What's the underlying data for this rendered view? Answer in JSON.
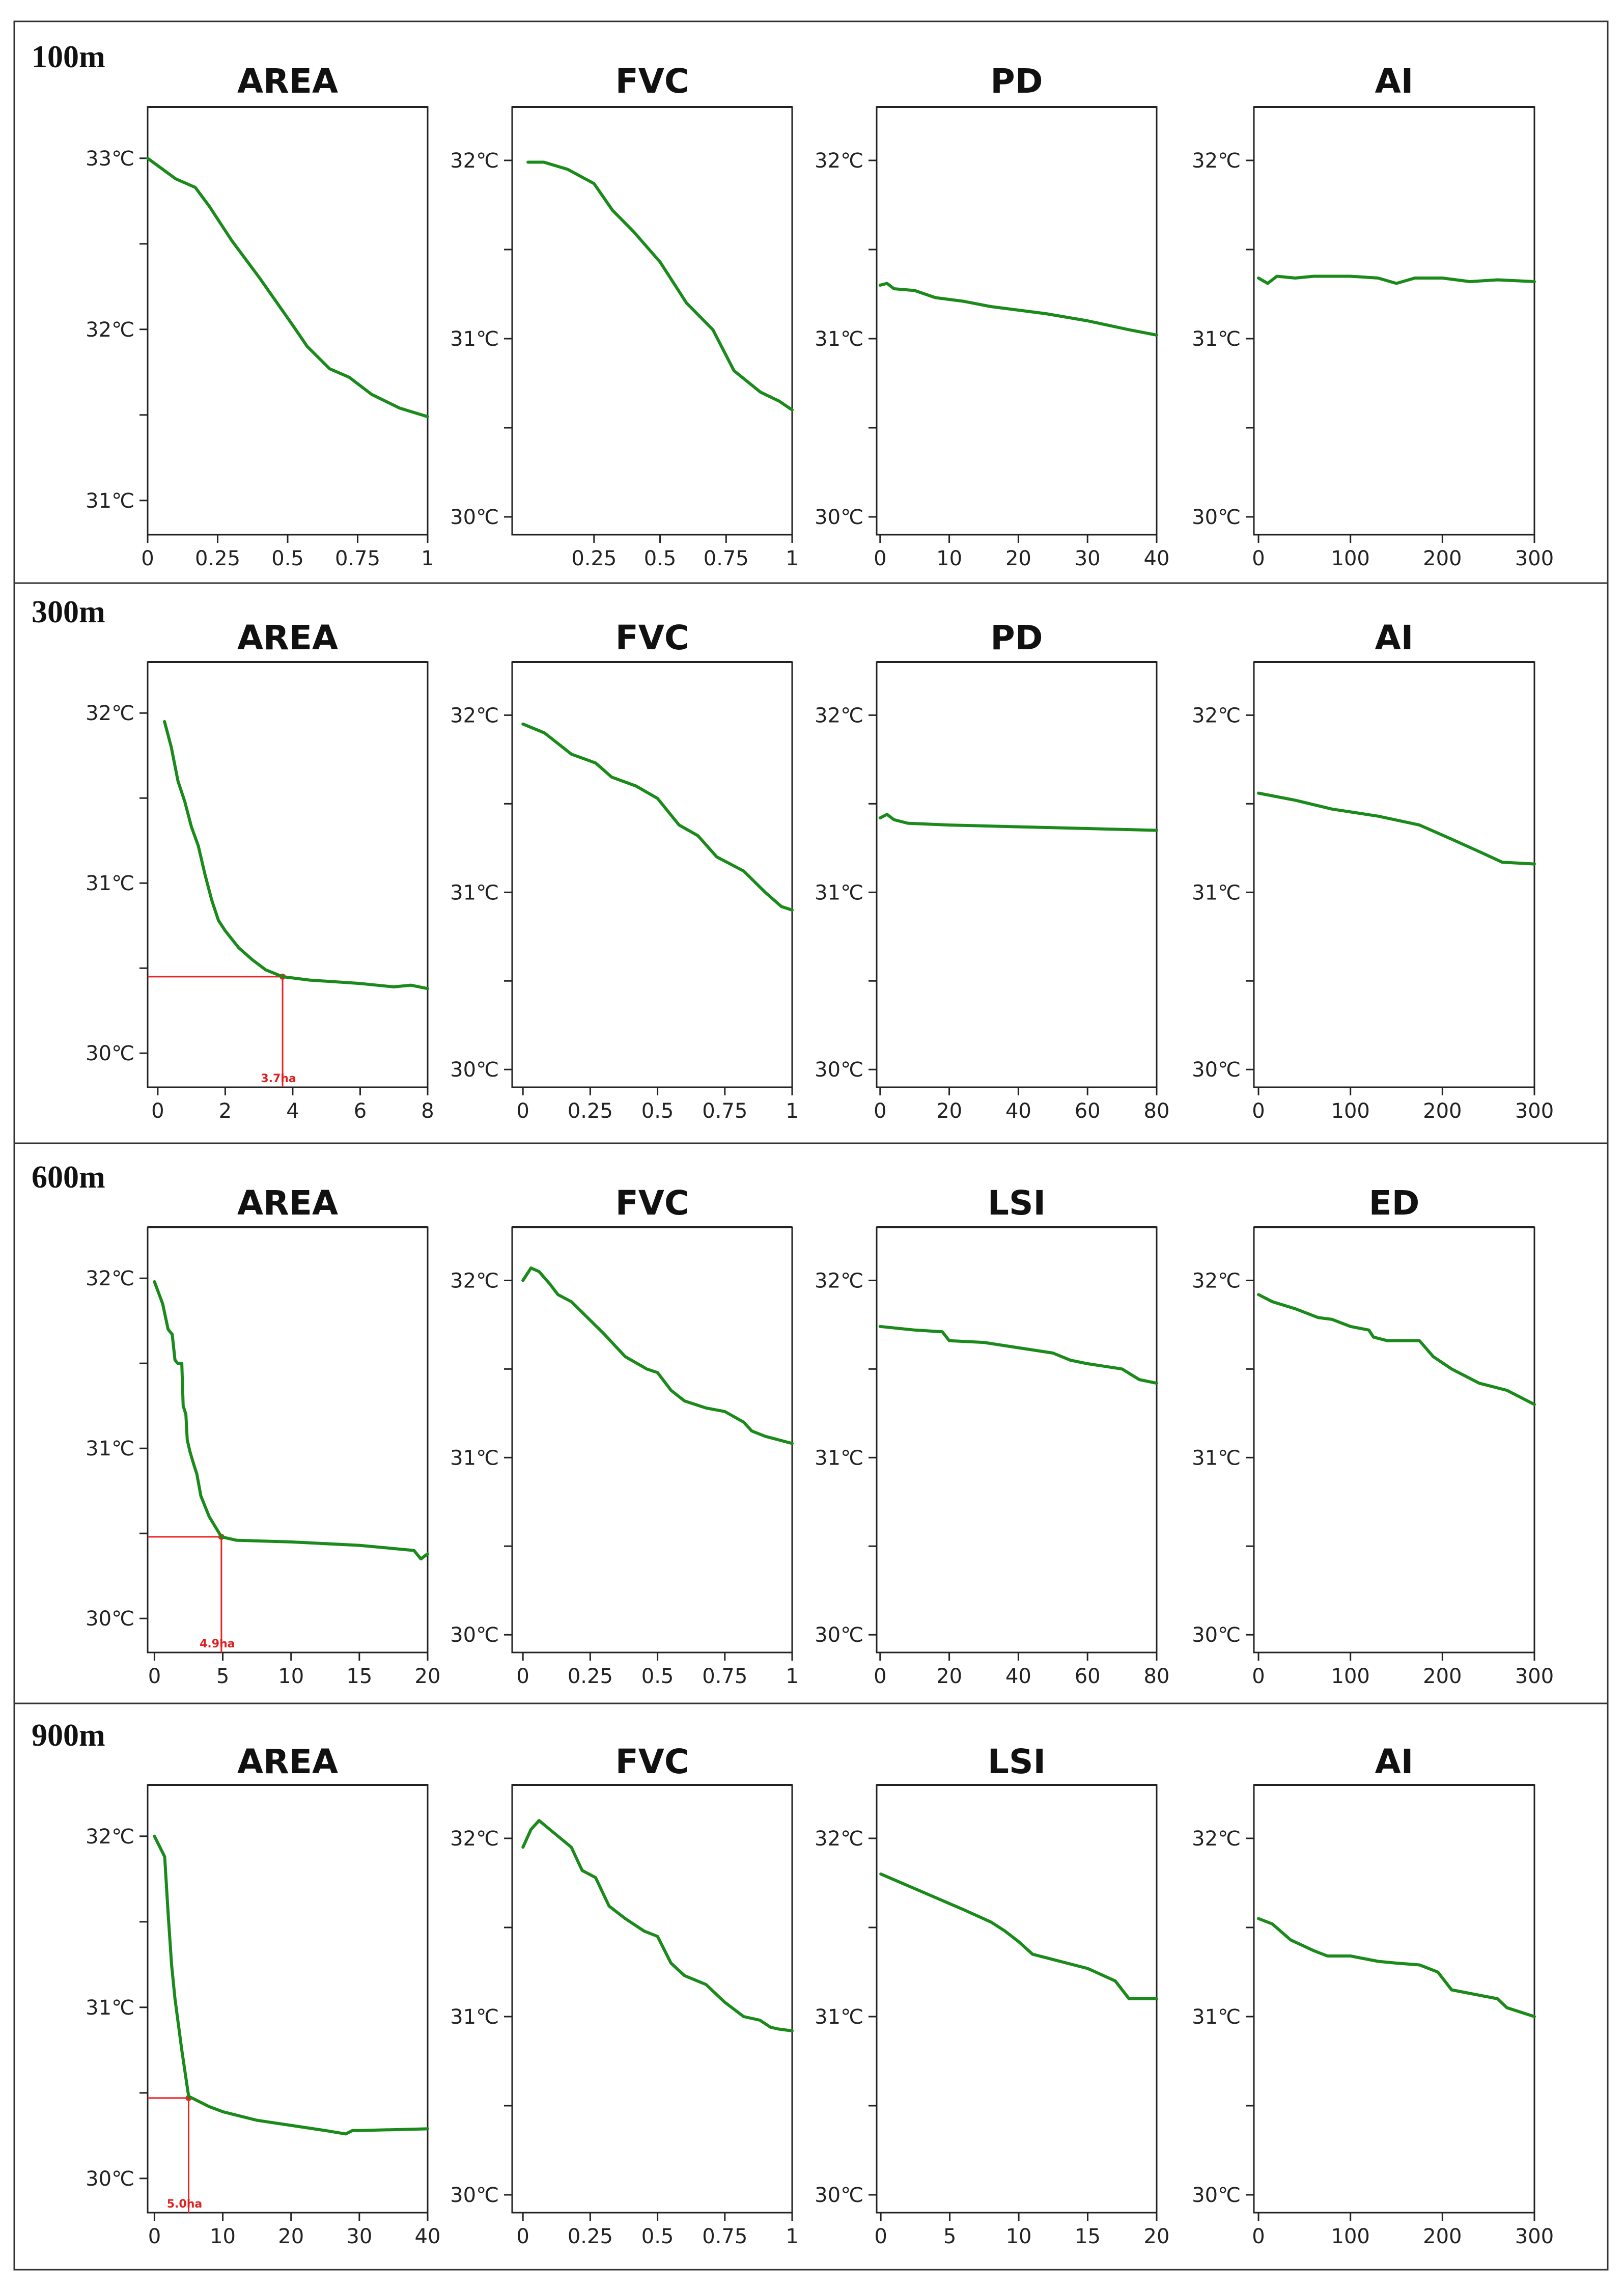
{
  "colors": {
    "series": "#1a8a1a",
    "annotation": "#ee2222",
    "axis": "#222222"
  },
  "chart_data": [
    {
      "row": "100m",
      "title": "AREA",
      "type": "line",
      "xlim": [
        0,
        1
      ],
      "ylim": [
        30.8,
        33.3
      ],
      "xticks": [
        {
          "v": 0,
          "label": "0"
        },
        {
          "v": 0.25,
          "label": "0.25"
        },
        {
          "v": 0.5,
          "label": "0.5"
        },
        {
          "v": 0.75,
          "label": "0.75"
        },
        {
          "v": 1,
          "label": "1"
        }
      ],
      "yticks": [
        {
          "v": 31,
          "label": "31℃"
        },
        {
          "v": 32,
          "label": "32℃"
        },
        {
          "v": 33,
          "label": "33℃"
        }
      ],
      "yminor": [
        31.5,
        32.5
      ],
      "x": [
        0,
        0.1,
        0.17,
        0.22,
        0.3,
        0.4,
        0.52,
        0.57,
        0.65,
        0.72,
        0.8,
        0.9,
        1.0
      ],
      "y": [
        33.0,
        32.88,
        32.83,
        32.72,
        32.52,
        32.3,
        32.02,
        31.9,
        31.77,
        31.72,
        31.62,
        31.54,
        31.49
      ]
    },
    {
      "row": "100m",
      "title": "FVC",
      "type": "line",
      "xlim": [
        -0.06,
        1
      ],
      "ylim": [
        29.9,
        32.3
      ],
      "xticks": [
        {
          "v": 0.25,
          "label": "0.25"
        },
        {
          "v": 0.5,
          "label": "0.5"
        },
        {
          "v": 0.75,
          "label": "0.75"
        },
        {
          "v": 1,
          "label": "1"
        }
      ],
      "yticks": [
        {
          "v": 30,
          "label": "30℃"
        },
        {
          "v": 31,
          "label": "31℃"
        },
        {
          "v": 32,
          "label": "32℃"
        }
      ],
      "yminor": [
        30.5,
        31.5
      ],
      "x": [
        0,
        0.06,
        0.15,
        0.25,
        0.32,
        0.4,
        0.5,
        0.6,
        0.7,
        0.78,
        0.88,
        0.95,
        1.0
      ],
      "y": [
        31.99,
        31.99,
        31.95,
        31.87,
        31.72,
        31.6,
        31.43,
        31.2,
        31.05,
        30.82,
        30.7,
        30.65,
        30.6
      ]
    },
    {
      "row": "100m",
      "title": "PD",
      "type": "line",
      "xlim": [
        -0.5,
        40
      ],
      "ylim": [
        29.9,
        32.3
      ],
      "xticks": [
        {
          "v": 0,
          "label": "0"
        },
        {
          "v": 10,
          "label": "10"
        },
        {
          "v": 20,
          "label": "20"
        },
        {
          "v": 30,
          "label": "30"
        },
        {
          "v": 40,
          "label": "40"
        }
      ],
      "yticks": [
        {
          "v": 30,
          "label": "30℃"
        },
        {
          "v": 31,
          "label": "31℃"
        },
        {
          "v": 32,
          "label": "32℃"
        }
      ],
      "yminor": [
        30.5,
        31.5
      ],
      "x": [
        0,
        1,
        2,
        5,
        8,
        12,
        16,
        20,
        24,
        30,
        36,
        40
      ],
      "y": [
        31.3,
        31.31,
        31.28,
        31.27,
        31.23,
        31.21,
        31.18,
        31.16,
        31.14,
        31.1,
        31.05,
        31.02
      ]
    },
    {
      "row": "100m",
      "title": "AI",
      "type": "line",
      "xlim": [
        -5,
        300
      ],
      "ylim": [
        29.9,
        32.3
      ],
      "xticks": [
        {
          "v": 0,
          "label": "0"
        },
        {
          "v": 100,
          "label": "100"
        },
        {
          "v": 200,
          "label": "200"
        },
        {
          "v": 300,
          "label": "300"
        }
      ],
      "yticks": [
        {
          "v": 30,
          "label": "30℃"
        },
        {
          "v": 31,
          "label": "31℃"
        },
        {
          "v": 32,
          "label": "32℃"
        }
      ],
      "yminor": [
        30.5,
        31.5
      ],
      "x": [
        0,
        10,
        20,
        40,
        60,
        100,
        130,
        150,
        170,
        200,
        230,
        260,
        300
      ],
      "y": [
        31.34,
        31.31,
        31.35,
        31.34,
        31.35,
        31.35,
        31.34,
        31.31,
        31.34,
        31.34,
        31.32,
        31.33,
        31.32
      ]
    },
    {
      "row": "300m",
      "title": "AREA",
      "type": "line",
      "xlim": [
        -0.3,
        8
      ],
      "ylim": [
        29.8,
        32.3
      ],
      "xticks": [
        {
          "v": 0,
          "label": "0"
        },
        {
          "v": 2,
          "label": "2"
        },
        {
          "v": 4,
          "label": "4"
        },
        {
          "v": 6,
          "label": "6"
        },
        {
          "v": 8,
          "label": "8"
        }
      ],
      "yticks": [
        {
          "v": 30,
          "label": "30℃"
        },
        {
          "v": 31,
          "label": "31℃"
        },
        {
          "v": 32,
          "label": "32℃"
        }
      ],
      "yminor": [
        30.5,
        31.5
      ],
      "x": [
        0.2,
        0.4,
        0.6,
        0.8,
        1.0,
        1.2,
        1.4,
        1.6,
        1.8,
        2.0,
        2.4,
        2.8,
        3.2,
        3.7,
        4.5,
        6.0,
        7.0,
        7.5,
        8.0
      ],
      "y": [
        31.95,
        31.8,
        31.6,
        31.48,
        31.33,
        31.22,
        31.05,
        30.9,
        30.78,
        30.72,
        30.62,
        30.55,
        30.49,
        30.45,
        30.43,
        30.41,
        30.39,
        30.4,
        30.38
      ],
      "marker": {
        "x": 3.7,
        "y": 30.45,
        "label": "3.7ha"
      }
    },
    {
      "row": "300m",
      "title": "FVC",
      "type": "line",
      "xlim": [
        -0.04,
        1
      ],
      "ylim": [
        29.9,
        32.3
      ],
      "xticks": [
        {
          "v": 0,
          "label": "0"
        },
        {
          "v": 0.25,
          "label": "0.25"
        },
        {
          "v": 0.5,
          "label": "0.5"
        },
        {
          "v": 0.75,
          "label": "0.75"
        },
        {
          "v": 1,
          "label": "1"
        }
      ],
      "yticks": [
        {
          "v": 30,
          "label": "30℃"
        },
        {
          "v": 31,
          "label": "31℃"
        },
        {
          "v": 32,
          "label": "32℃"
        }
      ],
      "yminor": [
        30.5,
        31.5
      ],
      "x": [
        0,
        0.08,
        0.18,
        0.27,
        0.33,
        0.42,
        0.5,
        0.58,
        0.65,
        0.72,
        0.82,
        0.9,
        0.96,
        1.0
      ],
      "y": [
        31.95,
        31.9,
        31.78,
        31.73,
        31.65,
        31.6,
        31.53,
        31.38,
        31.32,
        31.2,
        31.12,
        31.0,
        30.92,
        30.9
      ]
    },
    {
      "row": "300m",
      "title": "PD",
      "type": "line",
      "xlim": [
        -1,
        80
      ],
      "ylim": [
        29.9,
        32.3
      ],
      "xticks": [
        {
          "v": 0,
          "label": "0"
        },
        {
          "v": 20,
          "label": "20"
        },
        {
          "v": 40,
          "label": "40"
        },
        {
          "v": 60,
          "label": "60"
        },
        {
          "v": 80,
          "label": "80"
        }
      ],
      "yticks": [
        {
          "v": 30,
          "label": "30℃"
        },
        {
          "v": 31,
          "label": "31℃"
        },
        {
          "v": 32,
          "label": "32℃"
        }
      ],
      "yminor": [
        30.5,
        31.5
      ],
      "x": [
        0,
        2,
        4,
        8,
        20,
        40,
        60,
        80
      ],
      "y": [
        31.42,
        31.44,
        31.41,
        31.39,
        31.38,
        31.37,
        31.36,
        31.35
      ]
    },
    {
      "row": "300m",
      "title": "AI",
      "type": "line",
      "xlim": [
        -5,
        300
      ],
      "ylim": [
        29.9,
        32.3
      ],
      "xticks": [
        {
          "v": 0,
          "label": "0"
        },
        {
          "v": 100,
          "label": "100"
        },
        {
          "v": 200,
          "label": "200"
        },
        {
          "v": 300,
          "label": "300"
        }
      ],
      "yticks": [
        {
          "v": 30,
          "label": "30℃"
        },
        {
          "v": 31,
          "label": "31℃"
        },
        {
          "v": 32,
          "label": "32℃"
        }
      ],
      "yminor": [
        30.5,
        31.5
      ],
      "x": [
        0,
        40,
        80,
        130,
        175,
        210,
        240,
        265,
        300
      ],
      "y": [
        31.56,
        31.52,
        31.47,
        31.43,
        31.38,
        31.3,
        31.23,
        31.17,
        31.16
      ]
    },
    {
      "row": "600m",
      "title": "AREA",
      "type": "line",
      "xlim": [
        -0.5,
        20
      ],
      "ylim": [
        29.8,
        32.3
      ],
      "xticks": [
        {
          "v": 0,
          "label": "0"
        },
        {
          "v": 5,
          "label": "5"
        },
        {
          "v": 10,
          "label": "10"
        },
        {
          "v": 15,
          "label": "15"
        },
        {
          "v": 20,
          "label": "20"
        }
      ],
      "yticks": [
        {
          "v": 30,
          "label": "30℃"
        },
        {
          "v": 31,
          "label": "31℃"
        },
        {
          "v": 32,
          "label": "32℃"
        }
      ],
      "yminor": [
        30.5,
        31.5
      ],
      "x": [
        0,
        0.6,
        1.0,
        1.3,
        1.5,
        1.7,
        2.0,
        2.1,
        2.3,
        2.4,
        2.6,
        2.9,
        3.1,
        3.4,
        4.0,
        4.9,
        6.0,
        10.0,
        15.0,
        19.0,
        19.5,
        20.0
      ],
      "y": [
        31.98,
        31.85,
        31.7,
        31.67,
        31.52,
        31.5,
        31.5,
        31.25,
        31.2,
        31.05,
        30.98,
        30.9,
        30.85,
        30.72,
        30.6,
        30.48,
        30.46,
        30.45,
        30.43,
        30.4,
        30.35,
        30.38
      ],
      "marker": {
        "x": 4.9,
        "y": 30.48,
        "label": "4.9ha"
      }
    },
    {
      "row": "600m",
      "title": "FVC",
      "type": "line",
      "xlim": [
        -0.04,
        1
      ],
      "ylim": [
        29.9,
        32.3
      ],
      "xticks": [
        {
          "v": 0,
          "label": "0"
        },
        {
          "v": 0.25,
          "label": "0.25"
        },
        {
          "v": 0.5,
          "label": "0.5"
        },
        {
          "v": 0.75,
          "label": "0.75"
        },
        {
          "v": 1,
          "label": "1"
        }
      ],
      "yticks": [
        {
          "v": 30,
          "label": "30℃"
        },
        {
          "v": 31,
          "label": "31℃"
        },
        {
          "v": 32,
          "label": "32℃"
        }
      ],
      "yminor": [
        30.5,
        31.5
      ],
      "x": [
        0,
        0.03,
        0.06,
        0.1,
        0.13,
        0.18,
        0.22,
        0.3,
        0.38,
        0.46,
        0.5,
        0.55,
        0.6,
        0.68,
        0.75,
        0.82,
        0.85,
        0.9,
        0.95,
        1.0
      ],
      "y": [
        32.0,
        32.07,
        32.05,
        31.98,
        31.92,
        31.88,
        31.82,
        31.7,
        31.57,
        31.5,
        31.48,
        31.38,
        31.32,
        31.28,
        31.26,
        31.2,
        31.15,
        31.12,
        31.1,
        31.08
      ]
    },
    {
      "row": "600m",
      "title": "LSI",
      "type": "line",
      "xlim": [
        -1,
        80
      ],
      "ylim": [
        29.9,
        32.3
      ],
      "xticks": [
        {
          "v": 0,
          "label": "0"
        },
        {
          "v": 20,
          "label": "20"
        },
        {
          "v": 40,
          "label": "40"
        },
        {
          "v": 60,
          "label": "60"
        },
        {
          "v": 80,
          "label": "80"
        }
      ],
      "yticks": [
        {
          "v": 30,
          "label": "30℃"
        },
        {
          "v": 31,
          "label": "31℃"
        },
        {
          "v": 32,
          "label": "32℃"
        }
      ],
      "yminor": [
        30.5,
        31.5
      ],
      "x": [
        0,
        10,
        18,
        20,
        30,
        40,
        50,
        55,
        60,
        70,
        75,
        80
      ],
      "y": [
        31.74,
        31.72,
        31.71,
        31.66,
        31.65,
        31.62,
        31.59,
        31.55,
        31.53,
        31.5,
        31.44,
        31.42
      ]
    },
    {
      "row": "600m",
      "title": "ED",
      "type": "line",
      "xlim": [
        -5,
        300
      ],
      "ylim": [
        29.9,
        32.3
      ],
      "xticks": [
        {
          "v": 0,
          "label": "0"
        },
        {
          "v": 100,
          "label": "100"
        },
        {
          "v": 200,
          "label": "200"
        },
        {
          "v": 300,
          "label": "300"
        }
      ],
      "yticks": [
        {
          "v": 30,
          "label": "30℃"
        },
        {
          "v": 31,
          "label": "31℃"
        },
        {
          "v": 32,
          "label": "32℃"
        }
      ],
      "yminor": [
        30.5,
        31.5
      ],
      "x": [
        0,
        15,
        40,
        65,
        80,
        100,
        120,
        125,
        140,
        175,
        190,
        210,
        240,
        270,
        300
      ],
      "y": [
        31.92,
        31.88,
        31.84,
        31.79,
        31.78,
        31.74,
        31.72,
        31.68,
        31.66,
        31.66,
        31.57,
        31.5,
        31.42,
        31.38,
        31.3
      ]
    },
    {
      "row": "900m",
      "title": "AREA",
      "type": "line",
      "xlim": [
        -1,
        40
      ],
      "ylim": [
        29.8,
        32.3
      ],
      "xticks": [
        {
          "v": 0,
          "label": "0"
        },
        {
          "v": 10,
          "label": "10"
        },
        {
          "v": 20,
          "label": "20"
        },
        {
          "v": 30,
          "label": "30"
        },
        {
          "v": 40,
          "label": "40"
        }
      ],
      "yticks": [
        {
          "v": 30,
          "label": "30℃"
        },
        {
          "v": 31,
          "label": "31℃"
        },
        {
          "v": 32,
          "label": "32℃"
        }
      ],
      "yminor": [
        30.5,
        31.5
      ],
      "x": [
        0,
        1.5,
        2,
        2.5,
        3,
        4,
        5,
        6,
        8,
        10,
        15,
        20,
        25,
        28,
        29,
        30,
        40
      ],
      "y": [
        32.0,
        31.88,
        31.55,
        31.25,
        31.05,
        30.75,
        30.48,
        30.46,
        30.42,
        30.39,
        30.34,
        30.31,
        30.28,
        30.26,
        30.28,
        30.28,
        30.29
      ],
      "marker": {
        "x": 5.0,
        "y": 30.47,
        "label": "5.0ha"
      }
    },
    {
      "row": "900m",
      "title": "FVC",
      "type": "line",
      "xlim": [
        -0.04,
        1
      ],
      "ylim": [
        29.9,
        32.3
      ],
      "xticks": [
        {
          "v": 0,
          "label": "0"
        },
        {
          "v": 0.25,
          "label": "0.25"
        },
        {
          "v": 0.5,
          "label": "0.5"
        },
        {
          "v": 0.75,
          "label": "0.75"
        },
        {
          "v": 1,
          "label": "1"
        }
      ],
      "yticks": [
        {
          "v": 30,
          "label": "30℃"
        },
        {
          "v": 31,
          "label": "31℃"
        },
        {
          "v": 32,
          "label": "32℃"
        }
      ],
      "yminor": [
        30.5,
        31.5
      ],
      "x": [
        0,
        0.03,
        0.06,
        0.1,
        0.18,
        0.22,
        0.27,
        0.32,
        0.38,
        0.45,
        0.5,
        0.55,
        0.6,
        0.68,
        0.75,
        0.82,
        0.88,
        0.92,
        0.95,
        1.0
      ],
      "y": [
        31.95,
        32.05,
        32.1,
        32.05,
        31.95,
        31.82,
        31.78,
        31.62,
        31.55,
        31.48,
        31.45,
        31.3,
        31.23,
        31.18,
        31.08,
        31.0,
        30.98,
        30.94,
        30.93,
        30.92
      ]
    },
    {
      "row": "900m",
      "title": "LSI",
      "type": "line",
      "xlim": [
        -0.3,
        20
      ],
      "ylim": [
        29.9,
        32.3
      ],
      "xticks": [
        {
          "v": 0,
          "label": "0"
        },
        {
          "v": 5,
          "label": "5"
        },
        {
          "v": 10,
          "label": "10"
        },
        {
          "v": 15,
          "label": "15"
        },
        {
          "v": 20,
          "label": "20"
        }
      ],
      "yticks": [
        {
          "v": 30,
          "label": "30℃"
        },
        {
          "v": 31,
          "label": "31℃"
        },
        {
          "v": 32,
          "label": "32℃"
        }
      ],
      "yminor": [
        30.5,
        31.5
      ],
      "x": [
        0,
        3,
        6,
        8,
        9,
        10,
        11,
        15,
        17,
        18,
        20
      ],
      "y": [
        31.8,
        31.7,
        31.6,
        31.53,
        31.48,
        31.42,
        31.35,
        31.27,
        31.2,
        31.1,
        31.1
      ]
    },
    {
      "row": "900m",
      "title": "AI",
      "type": "line",
      "xlim": [
        -5,
        300
      ],
      "ylim": [
        29.9,
        32.3
      ],
      "xticks": [
        {
          "v": 0,
          "label": "0"
        },
        {
          "v": 100,
          "label": "100"
        },
        {
          "v": 200,
          "label": "200"
        },
        {
          "v": 300,
          "label": "300"
        }
      ],
      "yticks": [
        {
          "v": 30,
          "label": "30℃"
        },
        {
          "v": 31,
          "label": "31℃"
        },
        {
          "v": 32,
          "label": "32℃"
        }
      ],
      "yminor": [
        30.5,
        31.5
      ],
      "x": [
        0,
        15,
        35,
        60,
        75,
        100,
        130,
        150,
        175,
        195,
        210,
        240,
        260,
        270,
        300
      ],
      "y": [
        31.55,
        31.52,
        31.43,
        31.37,
        31.34,
        31.34,
        31.31,
        31.3,
        31.29,
        31.25,
        31.15,
        31.12,
        31.1,
        31.05,
        31.0
      ]
    }
  ]
}
